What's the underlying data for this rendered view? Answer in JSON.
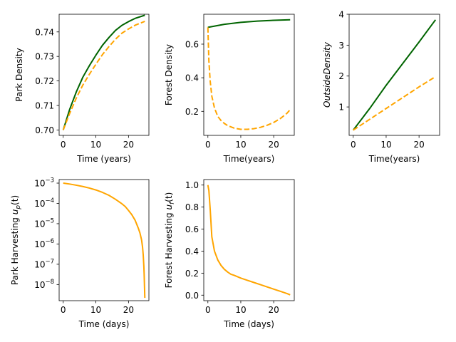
{
  "chart_data": [
    {
      "id": "park",
      "type": "line",
      "xlabel": "Time (years)",
      "ylabel": "Park Density",
      "xlim": [
        -1.25,
        26.25
      ],
      "ylim": [
        0.6978,
        0.7472
      ],
      "xticks": [
        0,
        10,
        20
      ],
      "yticks": [
        0.7,
        0.71,
        0.72,
        0.73,
        0.74
      ],
      "ytick_labels": [
        "0.70",
        "0.71",
        "0.72",
        "0.73",
        "0.74"
      ],
      "grid": false,
      "series": [
        {
          "color": "#006400",
          "style": "solid",
          "x": [
            0,
            2,
            4,
            6,
            8,
            10,
            12,
            14,
            16,
            18,
            20,
            22,
            25
          ],
          "y": [
            0.7,
            0.7085,
            0.7155,
            0.7215,
            0.7262,
            0.7305,
            0.7345,
            0.7377,
            0.7406,
            0.7427,
            0.7442,
            0.7455,
            0.7468
          ]
        },
        {
          "color": "#FFA500",
          "style": "dashed",
          "x": [
            0,
            2,
            4,
            6,
            8,
            10,
            12,
            14,
            16,
            18,
            20,
            22,
            25
          ],
          "y": [
            0.7,
            0.7068,
            0.713,
            0.7183,
            0.7227,
            0.7268,
            0.7307,
            0.734,
            0.737,
            0.7395,
            0.7412,
            0.7427,
            0.7443
          ]
        }
      ]
    },
    {
      "id": "forest",
      "type": "line",
      "xlabel": "Time(years)",
      "ylabel": "Forest Density",
      "xlim": [
        -1.25,
        26.25
      ],
      "ylim": [
        0.057,
        0.778
      ],
      "xticks": [
        0,
        10,
        20
      ],
      "yticks": [
        0.2,
        0.4,
        0.6
      ],
      "ytick_labels": [
        "0.2",
        "0.4",
        "0.6"
      ],
      "grid": false,
      "series": [
        {
          "color": "#006400",
          "style": "solid",
          "x": [
            0,
            5,
            10,
            15,
            20,
            25
          ],
          "y": [
            0.7,
            0.718,
            0.73,
            0.737,
            0.742,
            0.745
          ]
        },
        {
          "color": "#FFA500",
          "style": "dashed",
          "x": [
            0,
            0.3,
            0.7,
            1.2,
            2,
            3,
            4,
            5,
            6,
            8,
            10,
            12,
            14,
            16,
            18,
            20,
            22,
            24,
            25
          ],
          "y": [
            0.7,
            0.5,
            0.38,
            0.29,
            0.22,
            0.17,
            0.145,
            0.128,
            0.115,
            0.1,
            0.093,
            0.093,
            0.097,
            0.105,
            0.117,
            0.134,
            0.157,
            0.188,
            0.21
          ]
        }
      ]
    },
    {
      "id": "outside",
      "type": "line",
      "xlabel": "Time(years)",
      "ylabel": "OutsideDensity",
      "ylabel_italic": true,
      "xlim": [
        -1.25,
        26.25
      ],
      "ylim": [
        0.08,
        4.0
      ],
      "xticks": [
        0,
        10,
        20
      ],
      "yticks": [
        1,
        2,
        3,
        4
      ],
      "ytick_labels": [
        "1",
        "2",
        "3",
        "4"
      ],
      "grid": false,
      "series": [
        {
          "color": "#006400",
          "style": "solid",
          "x": [
            0,
            5,
            10,
            15,
            20,
            25
          ],
          "y": [
            0.25,
            0.95,
            1.7,
            2.4,
            3.1,
            3.82
          ]
        },
        {
          "color": "#FFA500",
          "style": "dashed",
          "x": [
            0,
            5,
            10,
            15,
            20,
            25
          ],
          "y": [
            0.25,
            0.6,
            0.95,
            1.3,
            1.65,
            1.98
          ]
        }
      ]
    },
    {
      "id": "park_harvest",
      "type": "line",
      "xlabel": "Time (days)",
      "ylabel": "Park Harvesting  u_p(t)",
      "ylabel_text": "Park Harvesting",
      "ylabel_math": "u",
      "ylabel_sub": "p",
      "ylabel_tail": "(t)",
      "yscale": "log",
      "xlim": [
        -1.25,
        26.25
      ],
      "ylim": [
        1.6e-09,
        0.0015
      ],
      "xticks": [
        0,
        10,
        20
      ],
      "yticks": [
        0.001,
        0.0001,
        1e-05,
        1e-06,
        1e-07,
        1e-08
      ],
      "ytick_base": "10",
      "ytick_exponents": [
        "−3",
        "−4",
        "−5",
        "−6",
        "−7",
        "−8"
      ],
      "grid": false,
      "series": [
        {
          "color": "#FFA500",
          "style": "solid",
          "x": [
            0,
            2,
            4,
            6,
            8,
            10,
            12,
            14,
            16,
            18,
            19,
            20,
            21,
            22,
            23,
            23.5,
            24,
            24.3,
            24.5,
            24.7,
            24.8,
            24.9,
            25
          ],
          "y": [
            0.001,
            0.0009,
            0.00079,
            0.00068,
            0.00057,
            0.00046,
            0.00035,
            0.00025,
            0.00016,
            9.5e-05,
            7e-05,
            4.5e-05,
            2.8e-05,
            1.5e-05,
            6e-06,
            3.5e-06,
            1.6e-06,
            7e-07,
            3e-07,
            8e-08,
            3e-08,
            8e-09,
            2.2e-09
          ]
        }
      ]
    },
    {
      "id": "forest_harvest",
      "type": "line",
      "xlabel": "Time (days)",
      "ylabel": "Forest Harvesting  u_f(t)",
      "ylabel_text": "Forest Harvesting",
      "ylabel_math": "u",
      "ylabel_sub": "f",
      "ylabel_tail": "(t)",
      "xlim": [
        -1.25,
        26.25
      ],
      "ylim": [
        -0.05,
        1.05
      ],
      "xticks": [
        0,
        10,
        20
      ],
      "yticks": [
        0.0,
        0.2,
        0.4,
        0.6,
        0.8,
        1.0
      ],
      "ytick_labels": [
        "0.0",
        "0.2",
        "0.4",
        "0.6",
        "0.8",
        "1.0"
      ],
      "grid": false,
      "series": [
        {
          "color": "#FFA500",
          "style": "solid",
          "x": [
            0,
            0.3,
            0.7,
            1.2,
            2,
            3,
            4,
            5,
            6,
            7,
            8,
            10,
            12,
            14,
            16,
            18,
            20,
            22,
            24,
            25
          ],
          "y": [
            1.0,
            0.95,
            0.78,
            0.53,
            0.4,
            0.32,
            0.27,
            0.235,
            0.21,
            0.19,
            0.18,
            0.155,
            0.135,
            0.115,
            0.095,
            0.075,
            0.055,
            0.035,
            0.015,
            0.003
          ]
        }
      ]
    }
  ]
}
